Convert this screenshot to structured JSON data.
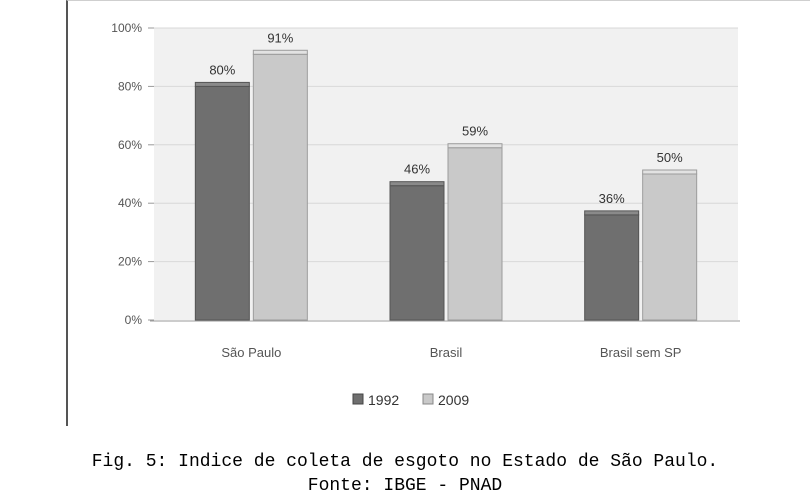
{
  "chart_data": {
    "type": "bar",
    "categories": [
      "São Paulo",
      "Brasil",
      "Brasil sem SP"
    ],
    "series": [
      {
        "name": "1992",
        "values": [
          80,
          46,
          36
        ],
        "labels": [
          "80%",
          "46%",
          "36%"
        ],
        "color": "#6f6f6f"
      },
      {
        "name": "2009",
        "values": [
          91,
          59,
          50
        ],
        "labels": [
          "91%",
          "59%",
          "50%"
        ],
        "color": "#c9c9c9"
      }
    ],
    "ylim": [
      0,
      100
    ],
    "yticks": [
      "0%",
      "20%",
      "40%",
      "60%",
      "80%",
      "100%"
    ],
    "grid": true,
    "legend_position": "bottom"
  },
  "caption": {
    "line1": "Fig. 5: Indice de coleta de esgoto no Estado de São Paulo.",
    "line2": "Fonte: IBGE - PNAD"
  }
}
